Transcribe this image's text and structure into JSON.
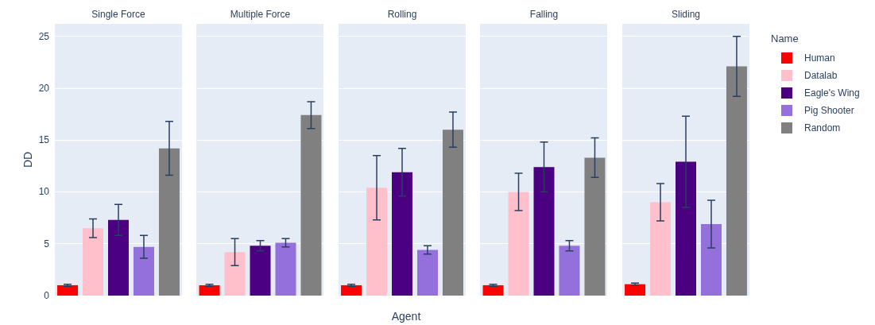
{
  "chart_data": {
    "type": "bar",
    "ylabel": "DD",
    "xlabel": "Agent",
    "legend_title": "Name",
    "legend": "top right",
    "grid": "y",
    "categories": [
      "Single Force",
      "Multiple Force",
      "Rolling",
      "Falling",
      "Sliding"
    ],
    "ylim": [
      0,
      26.2
    ],
    "yticks": [
      0,
      5,
      10,
      15,
      20,
      25
    ],
    "series": [
      {
        "name": "Human",
        "color": "#ff0000",
        "values": [
          1.0,
          1.0,
          1.0,
          1.0,
          1.1
        ],
        "errors": [
          0.1,
          0.1,
          0.1,
          0.1,
          0.1
        ]
      },
      {
        "name": "Datalab",
        "color": "#ffc0cb",
        "values": [
          6.5,
          4.2,
          10.4,
          10.0,
          9.0
        ],
        "errors": [
          0.9,
          1.3,
          3.1,
          1.8,
          1.8
        ]
      },
      {
        "name": "Eagle's Wing",
        "color": "#4b0082",
        "values": [
          7.3,
          4.8,
          11.9,
          12.4,
          12.9
        ],
        "errors": [
          1.5,
          0.5,
          2.3,
          2.4,
          4.4
        ]
      },
      {
        "name": "Pig Shooter",
        "color": "#9370db",
        "values": [
          4.7,
          5.1,
          4.4,
          4.8,
          6.9
        ],
        "errors": [
          1.1,
          0.4,
          0.4,
          0.5,
          2.3
        ]
      },
      {
        "name": "Random",
        "color": "#808080",
        "values": [
          14.2,
          17.4,
          16.0,
          13.3,
          22.1
        ],
        "errors": [
          2.6,
          1.3,
          1.7,
          1.9,
          2.9
        ]
      }
    ]
  }
}
